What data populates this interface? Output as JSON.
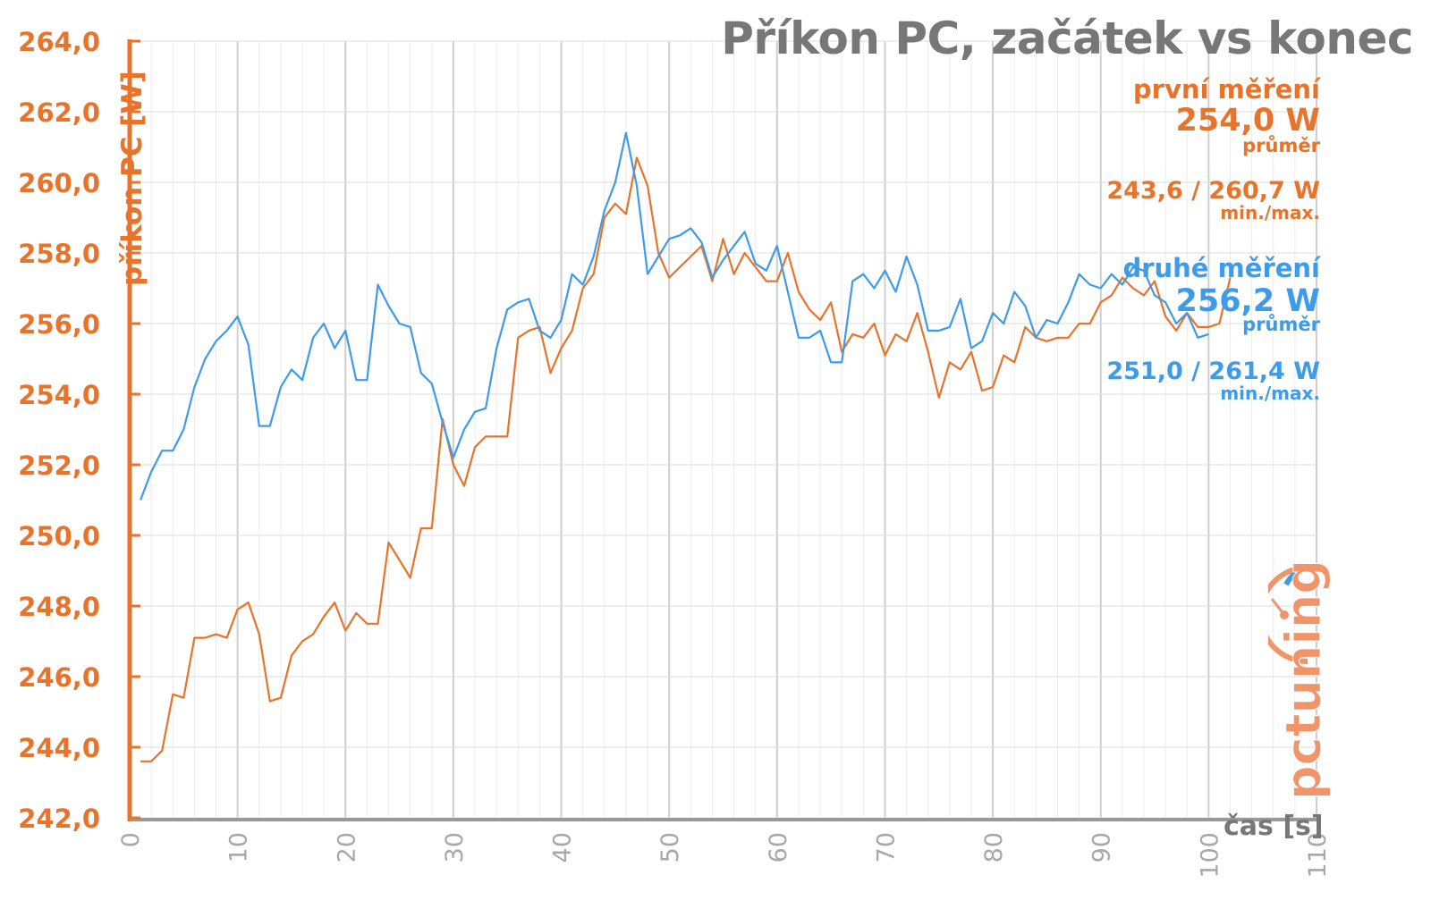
{
  "chart_data": {
    "type": "line",
    "title": "Příkon PC, začátek vs konec",
    "ylabel": "příkon PC [W]",
    "xlabel": "čas [s]",
    "xlim": [
      0,
      110
    ],
    "ylim": [
      242,
      264
    ],
    "x_ticks": [
      "0",
      "10",
      "20",
      "30",
      "40",
      "50",
      "60",
      "70",
      "80",
      "90",
      "100",
      "110"
    ],
    "y_ticks": [
      "242,0",
      "244,0",
      "246,0",
      "248,0",
      "250,0",
      "252,0",
      "254,0",
      "256,0",
      "258,0",
      "260,0",
      "262,0",
      "264,0"
    ],
    "grid": true,
    "series": [
      {
        "name": "první měření",
        "color": "#e8732a",
        "x": [
          1,
          2,
          3,
          4,
          5,
          6,
          7,
          8,
          9,
          10,
          11,
          12,
          13,
          14,
          15,
          16,
          17,
          18,
          19,
          20,
          21,
          22,
          23,
          24,
          25,
          26,
          27,
          28,
          29,
          30,
          31,
          32,
          33,
          34,
          35,
          36,
          37,
          38,
          39,
          40,
          41,
          42,
          43,
          44,
          45,
          46,
          47,
          48,
          49,
          50,
          51,
          52,
          53,
          54,
          55,
          56,
          57,
          58,
          59,
          60,
          61,
          62,
          63,
          64,
          65,
          66,
          67,
          68,
          69,
          70,
          71,
          72,
          73,
          74,
          75,
          76,
          77,
          78,
          79,
          80,
          81,
          82,
          83,
          84,
          85,
          86,
          87,
          88,
          89,
          90,
          91,
          92,
          93,
          94,
          95,
          96,
          97,
          98,
          99,
          100,
          101,
          102
        ],
        "y": [
          243.6,
          243.6,
          243.9,
          245.5,
          245.4,
          247.1,
          247.1,
          247.2,
          247.1,
          247.9,
          248.1,
          247.2,
          245.3,
          245.4,
          246.6,
          247.0,
          247.2,
          247.7,
          248.1,
          247.3,
          247.8,
          247.5,
          247.5,
          249.8,
          249.3,
          248.8,
          250.2,
          250.2,
          253.3,
          252.0,
          251.4,
          252.5,
          252.8,
          252.8,
          252.8,
          255.6,
          255.8,
          255.9,
          254.6,
          255.3,
          255.8,
          257.0,
          257.4,
          259.0,
          259.4,
          259.1,
          260.7,
          259.9,
          258.0,
          257.3,
          257.6,
          257.9,
          258.2,
          257.2,
          258.4,
          257.4,
          258.0,
          257.6,
          257.2,
          257.2,
          258.0,
          256.9,
          256.4,
          256.1,
          256.6,
          255.2,
          255.7,
          255.6,
          256.0,
          255.1,
          255.7,
          255.5,
          256.3,
          255.2,
          253.9,
          254.9,
          254.7,
          255.2,
          254.1,
          254.2,
          255.1,
          254.9,
          255.9,
          255.6,
          255.5,
          255.6,
          255.6,
          256.0,
          256.0,
          256.6,
          256.8,
          257.3,
          257.0,
          256.8,
          257.2,
          256.2,
          255.8,
          256.3,
          255.9,
          255.9,
          256.0,
          257.3
        ]
      },
      {
        "name": "druhé měření",
        "color": "#3d9be9",
        "x": [
          1,
          2,
          3,
          4,
          5,
          6,
          7,
          8,
          9,
          10,
          11,
          12,
          13,
          14,
          15,
          16,
          17,
          18,
          19,
          20,
          21,
          22,
          23,
          24,
          25,
          26,
          27,
          28,
          29,
          30,
          31,
          32,
          33,
          34,
          35,
          36,
          37,
          38,
          39,
          40,
          41,
          42,
          43,
          44,
          45,
          46,
          47,
          48,
          49,
          50,
          51,
          52,
          53,
          54,
          55,
          56,
          57,
          58,
          59,
          60,
          61,
          62,
          63,
          64,
          65,
          66,
          67,
          68,
          69,
          70,
          71,
          72,
          73,
          74,
          75,
          76,
          77,
          78,
          79,
          80,
          81,
          82,
          83,
          84,
          85,
          86,
          87,
          88,
          89,
          90,
          91,
          92,
          93,
          94,
          95,
          96,
          97,
          98,
          99,
          100
        ],
        "y": [
          251.0,
          251.8,
          252.4,
          252.4,
          253.0,
          254.2,
          255.0,
          255.5,
          255.8,
          256.2,
          255.4,
          253.1,
          253.1,
          254.2,
          254.7,
          254.4,
          255.6,
          256.0,
          255.3,
          255.8,
          254.4,
          254.4,
          257.1,
          256.5,
          256.0,
          255.9,
          254.6,
          254.3,
          253.2,
          252.2,
          253.0,
          253.5,
          253.6,
          255.3,
          256.4,
          256.6,
          256.7,
          255.8,
          255.6,
          256.1,
          257.4,
          257.1,
          257.9,
          259.2,
          260.0,
          261.4,
          259.9,
          257.4,
          257.9,
          258.4,
          258.5,
          258.7,
          258.3,
          257.3,
          257.8,
          258.2,
          258.6,
          257.7,
          257.5,
          258.2,
          256.9,
          255.6,
          255.6,
          255.8,
          254.9,
          254.9,
          257.2,
          257.4,
          257.0,
          257.5,
          256.9,
          257.9,
          257.1,
          255.8,
          255.8,
          255.9,
          256.7,
          255.3,
          255.5,
          256.3,
          256.0,
          256.9,
          256.5,
          255.6,
          256.1,
          256.0,
          256.6,
          257.4,
          257.1,
          257.0,
          257.4,
          257.1,
          257.6,
          257.5,
          256.8,
          256.6,
          256.0,
          256.3,
          255.6,
          255.7
        ]
      }
    ],
    "annotations": {
      "first": {
        "label": "první měření",
        "avg": "254,0 W",
        "avg_sub": "průměr",
        "minmax": "243,6 / 260,7 W",
        "minmax_sub": "min./max."
      },
      "second": {
        "label": "druhé měření",
        "avg": "256,2 W",
        "avg_sub": "průměr",
        "minmax": "251,0 / 261,4 W",
        "minmax_sub": "min./max."
      }
    },
    "logo_text": "pctuning"
  }
}
